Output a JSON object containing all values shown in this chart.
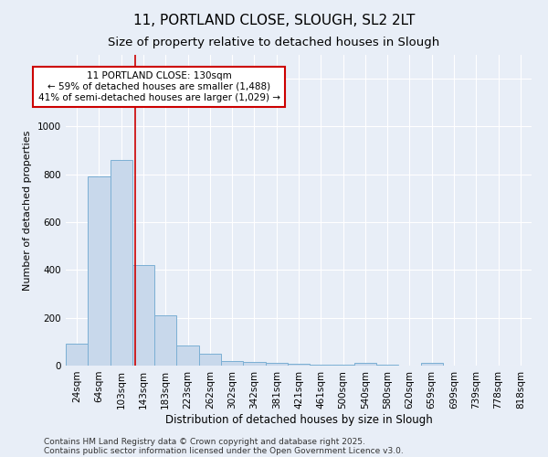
{
  "title": "11, PORTLAND CLOSE, SLOUGH, SL2 2LT",
  "subtitle": "Size of property relative to detached houses in Slough",
  "xlabel": "Distribution of detached houses by size in Slough",
  "ylabel": "Number of detached properties",
  "categories": [
    "24sqm",
    "64sqm",
    "103sqm",
    "143sqm",
    "183sqm",
    "223sqm",
    "262sqm",
    "302sqm",
    "342sqm",
    "381sqm",
    "421sqm",
    "461sqm",
    "500sqm",
    "540sqm",
    "580sqm",
    "620sqm",
    "659sqm",
    "699sqm",
    "739sqm",
    "778sqm",
    "818sqm"
  ],
  "values": [
    90,
    790,
    860,
    420,
    210,
    85,
    50,
    20,
    15,
    10,
    8,
    5,
    3,
    10,
    2,
    1,
    10,
    1,
    1,
    1,
    1
  ],
  "bar_color": "#c8d8eb",
  "bar_edge_color": "#7bafd4",
  "annotation_line1": "11 PORTLAND CLOSE: 130sqm",
  "annotation_line2": "← 59% of detached houses are smaller (1,488)",
  "annotation_line3": "41% of semi-detached houses are larger (1,029) →",
  "annotation_box_color": "#ffffff",
  "annotation_box_edge_color": "#cc0000",
  "red_line_x": 2.62,
  "ylim": [
    0,
    1300
  ],
  "yticks": [
    0,
    200,
    400,
    600,
    800,
    1000,
    1200
  ],
  "footnote1": "Contains HM Land Registry data © Crown copyright and database right 2025.",
  "footnote2": "Contains public sector information licensed under the Open Government Licence v3.0.",
  "background_color": "#e8eef7",
  "grid_color": "#ffffff",
  "title_fontsize": 11,
  "subtitle_fontsize": 9.5,
  "xlabel_fontsize": 8.5,
  "ylabel_fontsize": 8,
  "tick_fontsize": 7.5,
  "annotation_fontsize": 7.5,
  "footnote_fontsize": 6.5
}
